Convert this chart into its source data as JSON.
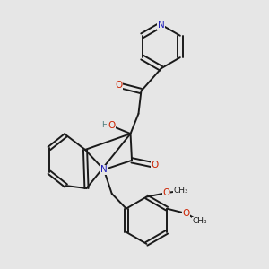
{
  "background_color": "#e6e6e6",
  "fig_size": [
    3.0,
    3.0
  ],
  "dpi": 100,
  "bond_color": "#1a1a1a",
  "atom_colors": {
    "N": "#2222bb",
    "O": "#cc2200",
    "H": "#4a7a7a",
    "C": "#1a1a1a"
  },
  "label_fontsize": 7.5,
  "line_width": 1.4
}
